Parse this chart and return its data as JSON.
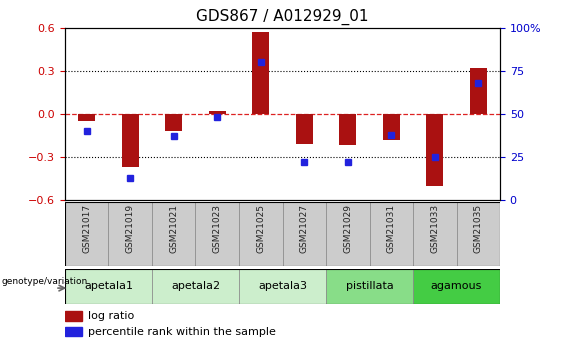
{
  "title": "GDS867 / A012929_01",
  "samples": [
    "GSM21017",
    "GSM21019",
    "GSM21021",
    "GSM21023",
    "GSM21025",
    "GSM21027",
    "GSM21029",
    "GSM21031",
    "GSM21033",
    "GSM21035"
  ],
  "log_ratio": [
    -0.05,
    -0.37,
    -0.12,
    0.02,
    0.57,
    -0.21,
    -0.22,
    -0.18,
    -0.5,
    0.32
  ],
  "percentile_rank": [
    40,
    13,
    37,
    48,
    80,
    22,
    22,
    38,
    25,
    68
  ],
  "ylim_left": [
    -0.6,
    0.6
  ],
  "ylim_right": [
    0,
    100
  ],
  "yticks_left": [
    -0.6,
    -0.3,
    0.0,
    0.3,
    0.6
  ],
  "yticks_right": [
    0,
    25,
    50,
    75,
    100
  ],
  "hlines_dotted": [
    0.3,
    -0.3
  ],
  "bar_color": "#AA1111",
  "dot_color": "#2222DD",
  "zeroline_color": "#DD2222",
  "groups": [
    {
      "label": "apetala1",
      "samples": [
        0,
        1
      ],
      "color": "#CCEECC"
    },
    {
      "label": "apetala2",
      "samples": [
        2,
        3
      ],
      "color": "#CCEECC"
    },
    {
      "label": "apetala3",
      "samples": [
        4,
        5
      ],
      "color": "#CCEECC"
    },
    {
      "label": "pistillata",
      "samples": [
        6,
        7
      ],
      "color": "#88DD88"
    },
    {
      "label": "agamous",
      "samples": [
        8,
        9
      ],
      "color": "#44CC44"
    }
  ],
  "legend_bar_label": "log ratio",
  "legend_dot_label": "percentile rank within the sample",
  "genotype_label": "genotype/variation",
  "title_fontsize": 11,
  "tick_fontsize": 8,
  "sample_fontsize": 6.5,
  "group_fontsize": 8,
  "legend_fontsize": 8
}
